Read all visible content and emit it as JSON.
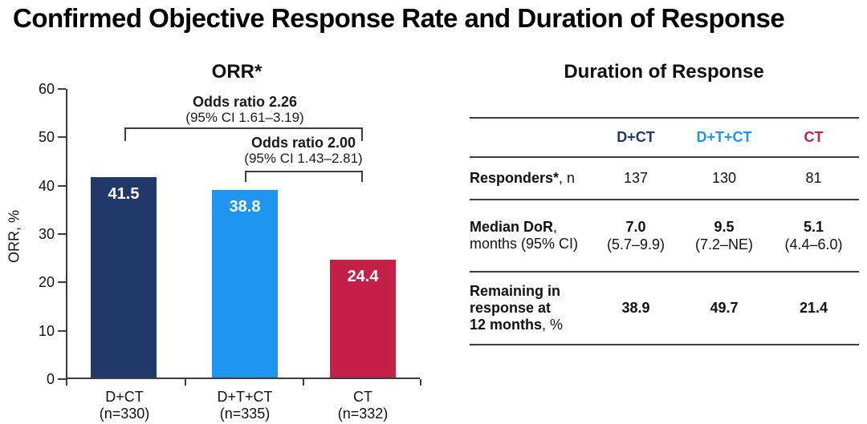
{
  "page": {
    "title": "Confirmed Objective Response Rate and Duration of Response"
  },
  "chart_data": [
    {
      "type": "bar",
      "title": "ORR*",
      "ylabel": "ORR, %",
      "ylim": [
        0,
        60
      ],
      "yticks": [
        0,
        10,
        20,
        30,
        40,
        50,
        60
      ],
      "grid": false,
      "categories": [
        "D+CT",
        "D+T+CT",
        "CT"
      ],
      "n_labels": [
        "(n=330)",
        "(n=335)",
        "(n=332)"
      ],
      "values": [
        41.5,
        38.8,
        24.4
      ],
      "bar_colors": [
        "#21386B",
        "#1E96F0",
        "#C42048"
      ],
      "annotations": [
        {
          "label": "Odds ratio 2.26",
          "ci": "(95% CI 1.61–3.19)",
          "compares": [
            "D+CT",
            "CT"
          ]
        },
        {
          "label": "Odds ratio 2.00",
          "ci": "(95% CI 1.43–2.81)",
          "compares": [
            "D+T+CT",
            "CT"
          ]
        }
      ]
    },
    {
      "type": "table",
      "title": "Duration of Response",
      "columns": [
        "D+CT",
        "D+T+CT",
        "CT"
      ],
      "column_colors": [
        "#21386B",
        "#1E96F0",
        "#C42048"
      ],
      "rows": [
        {
          "label_bold": "Responders*",
          "label_rest": ", n",
          "values": [
            "137",
            "130",
            "81"
          ]
        },
        {
          "label_bold": "Median DoR",
          "label_rest": ",",
          "label_line2": "months (95% CI)",
          "medians": [
            "7.0",
            "9.5",
            "5.1"
          ],
          "cis": [
            "(5.7–9.9)",
            "(7.2–NE)",
            "(4.4–6.0)"
          ]
        },
        {
          "label_l1": "Remaining in",
          "label_l2": "response at",
          "label_l3_bold": "12 months",
          "label_l3_rest": ", %",
          "values": [
            "38.9",
            "49.7",
            "21.4"
          ]
        }
      ]
    }
  ]
}
